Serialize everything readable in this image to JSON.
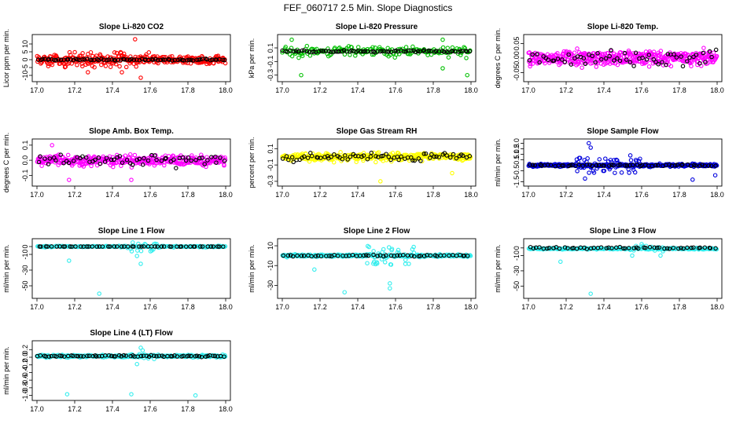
{
  "figure": {
    "title": "FEF_060717  2.5 Min. Slope Diagnostics"
  },
  "chart_data": [
    {
      "type": "scatter",
      "title": "Slope Li-820 CO2",
      "ylabel": "Licor ppm per min.",
      "xlim": [
        17.0,
        18.0
      ],
      "ylim": [
        -12,
        14
      ],
      "x_ticks": [
        17.0,
        17.2,
        17.4,
        17.6,
        17.8,
        18.0
      ],
      "x_tick_labels": [
        "17.0",
        "17.2",
        "17.4",
        "17.6",
        "17.8",
        "18.0"
      ],
      "y_ticks": [
        -10,
        -5,
        0,
        5,
        10
      ],
      "y_tick_labels": [
        "-10",
        "-5",
        "0",
        "5",
        "10"
      ],
      "series": [
        {
          "name": "all",
          "color": "#ff0000",
          "n": 360,
          "center": 0,
          "spread": 2.5,
          "outliers": [
            [
              17.52,
              13.0
            ],
            [
              17.55,
              -11.5
            ],
            [
              17.27,
              -8
            ],
            [
              17.45,
              -8
            ]
          ],
          "spike": {
            "from": 17.05,
            "to": 17.6,
            "amp": 5
          }
        },
        {
          "name": "selected",
          "color": "#000000",
          "n": 80,
          "center": 0,
          "spread": 0.5
        }
      ]
    },
    {
      "type": "scatter",
      "title": "Slope Li-820 Pressure",
      "ylabel": "kPa per min.",
      "xlim": [
        17.0,
        18.0
      ],
      "ylim": [
        -0.35,
        0.25
      ],
      "x_ticks": [
        17.0,
        17.2,
        17.4,
        17.6,
        17.8,
        18.0
      ],
      "x_tick_labels": [
        "17.0",
        "17.2",
        "17.4",
        "17.6",
        "17.8",
        "18.0"
      ],
      "y_ticks": [
        -0.3,
        -0.1,
        0.1
      ],
      "y_tick_labels": [
        "-0.3",
        "-0.1",
        "0.1"
      ],
      "series": [
        {
          "name": "all",
          "color": "#00c000",
          "n": 180,
          "center": 0.05,
          "spread": 0.06,
          "outliers": [
            [
              17.1,
              -0.3
            ],
            [
              17.98,
              -0.3
            ],
            [
              17.85,
              -0.2
            ],
            [
              17.05,
              0.22
            ],
            [
              17.85,
              0.22
            ]
          ],
          "spike": {
            "from": 17.0,
            "to": 18.0,
            "amp": 0.1
          }
        },
        {
          "name": "selected",
          "color": "#000000",
          "n": 80,
          "center": 0.05,
          "spread": 0.015
        }
      ]
    },
    {
      "type": "scatter",
      "title": "Slope Li-820 Temp.",
      "ylabel": "degrees C per min.",
      "xlim": [
        17.0,
        18.0
      ],
      "ylim": [
        -0.07,
        0.07
      ],
      "x_ticks": [
        17.0,
        17.2,
        17.4,
        17.6,
        17.8,
        18.0
      ],
      "x_tick_labels": [
        "17.0",
        "17.2",
        "17.4",
        "17.6",
        "17.8",
        "18.0"
      ],
      "y_ticks": [
        -0.05,
        0.0,
        0.05
      ],
      "y_tick_labels": [
        "-0.05",
        "0.00",
        "0.05"
      ],
      "series": [
        {
          "name": "all",
          "color": "#ff00ff",
          "n": 420,
          "center": 0,
          "spread": 0.025,
          "outliers": [],
          "spike": {
            "from": 17.0,
            "to": 18.0,
            "amp": 0.02
          }
        },
        {
          "name": "selected",
          "color": "#000000",
          "n": 60,
          "center": 0,
          "spread": 0.03
        }
      ]
    },
    {
      "type": "scatter",
      "title": "Slope Amb. Box Temp.",
      "ylabel": "degrees C per min.",
      "xlim": [
        17.0,
        18.0
      ],
      "ylim": [
        -0.15,
        0.12
      ],
      "x_ticks": [
        17.0,
        17.2,
        17.4,
        17.6,
        17.8,
        18.0
      ],
      "x_tick_labels": [
        "17.0",
        "17.2",
        "17.4",
        "17.6",
        "17.8",
        "18.0"
      ],
      "y_ticks": [
        -0.1,
        0.0,
        0.1
      ],
      "y_tick_labels": [
        "-0.1",
        "0.0",
        "0.1"
      ],
      "series": [
        {
          "name": "all",
          "color": "#ff00ff",
          "n": 360,
          "center": 0.0,
          "spread": 0.04,
          "outliers": [
            [
              17.17,
              -0.13
            ],
            [
              17.5,
              -0.13
            ],
            [
              17.08,
              0.1
            ]
          ],
          "spike": {
            "from": 17.0,
            "to": 18.0,
            "amp": 0.02
          }
        },
        {
          "name": "selected",
          "color": "#000000",
          "n": 60,
          "center": 0.0,
          "spread": 0.035
        }
      ]
    },
    {
      "type": "scatter",
      "title": "Slope Gas Stream RH",
      "ylabel": "percent per min.",
      "xlim": [
        17.0,
        18.0
      ],
      "ylim": [
        -0.32,
        0.18
      ],
      "x_ticks": [
        17.0,
        17.2,
        17.4,
        17.6,
        17.8,
        18.0
      ],
      "x_tick_labels": [
        "17.0",
        "17.2",
        "17.4",
        "17.6",
        "17.8",
        "18.0"
      ],
      "y_ticks": [
        -0.3,
        -0.1,
        0.1
      ],
      "y_tick_labels": [
        "-0.3",
        "-0.1",
        "0.1"
      ],
      "series": [
        {
          "name": "all",
          "color": "#ffff00",
          "n": 360,
          "center": 0.0,
          "spread": 0.05,
          "outliers": [
            [
              17.52,
              -0.3
            ],
            [
              17.9,
              -0.2
            ]
          ],
          "spike": {
            "from": 17.0,
            "to": 18.0,
            "amp": 0.03
          }
        },
        {
          "name": "selected",
          "color": "#000000",
          "n": 70,
          "center": 0.0,
          "spread": 0.05
        }
      ]
    },
    {
      "type": "scatter",
      "title": "Slope Sample Flow",
      "ylabel": "ml/min per min.",
      "xlim": [
        17.0,
        18.0
      ],
      "ylim": [
        -1.6,
        2.1
      ],
      "x_ticks": [
        17.0,
        17.2,
        17.4,
        17.6,
        17.8,
        18.0
      ],
      "x_tick_labels": [
        "17.0",
        "17.2",
        "17.4",
        "17.6",
        "17.8",
        "18.0"
      ],
      "y_ticks": [
        -1.5,
        -0.5,
        0.5,
        1.5
      ],
      "y_tick_labels": [
        "-1.5",
        "-0.5",
        "0.5",
        "1.0",
        "1.5",
        "2.0"
      ],
      "y_label_ticks": [
        -1.5,
        -0.5,
        0.5,
        1.0,
        1.5,
        2.0
      ],
      "series": [
        {
          "name": "all",
          "color": "#0000dd",
          "n": 400,
          "center": 0.0,
          "spread": 0.12,
          "outliers": [
            [
              17.32,
              2.0
            ],
            [
              17.33,
              1.6
            ],
            [
              17.3,
              -1.2
            ],
            [
              17.87,
              -1.3
            ],
            [
              17.99,
              -0.9
            ],
            [
              17.54,
              0.9
            ]
          ],
          "spike": {
            "from": 17.25,
            "to": 17.6,
            "amp": 0.7
          }
        },
        {
          "name": "selected",
          "color": "#000000",
          "n": 60,
          "center": 0.0,
          "spread": 0.08
        }
      ]
    },
    {
      "type": "scatter",
      "title": "Slope Line 1 Flow",
      "ylabel": "ml/min per min.",
      "xlim": [
        17.0,
        18.0
      ],
      "ylim": [
        -62,
        6
      ],
      "x_ticks": [
        17.0,
        17.2,
        17.4,
        17.6,
        17.8,
        18.0
      ],
      "x_tick_labels": [
        "17.0",
        "17.2",
        "17.4",
        "17.6",
        "17.8",
        "18.0"
      ],
      "y_ticks": [
        -50,
        -30,
        -10,
        0
      ],
      "y_tick_labels": [
        "-50",
        "-30",
        "-10",
        "0"
      ],
      "series": [
        {
          "name": "all",
          "color": "#33eeee",
          "n": 220,
          "center": 0.0,
          "spread": 0.8,
          "outliers": [
            [
              17.33,
              -60
            ],
            [
              17.17,
              -18
            ],
            [
              17.53,
              -12
            ],
            [
              17.55,
              -22
            ],
            [
              17.62,
              3
            ]
          ],
          "spike": {
            "from": 17.48,
            "to": 17.65,
            "amp": 6
          }
        },
        {
          "name": "selected",
          "color": "#000000",
          "n": 55,
          "center": 0.0,
          "spread": 0.1
        }
      ]
    },
    {
      "type": "scatter",
      "title": "Slope Line 2 Flow",
      "ylabel": "ml/min per min.",
      "xlim": [
        17.0,
        18.0
      ],
      "ylim": [
        -40,
        14
      ],
      "x_ticks": [
        17.0,
        17.2,
        17.4,
        17.6,
        17.8,
        18.0
      ],
      "x_tick_labels": [
        "17.0",
        "17.2",
        "17.4",
        "17.6",
        "17.8",
        "18.0"
      ],
      "y_ticks": [
        -30,
        -10,
        10
      ],
      "y_tick_labels": [
        "-30",
        "-10",
        "10"
      ],
      "series": [
        {
          "name": "all",
          "color": "#33eeee",
          "n": 360,
          "center": 0.0,
          "spread": 1.2,
          "outliers": [
            [
              17.33,
              -37
            ],
            [
              17.57,
              -33
            ],
            [
              17.57,
              -28
            ],
            [
              17.17,
              -14
            ]
          ],
          "spike": {
            "from": 17.45,
            "to": 17.7,
            "amp": 10
          }
        },
        {
          "name": "selected",
          "color": "#000000",
          "n": 55,
          "center": 0.0,
          "spread": 0.8
        }
      ]
    },
    {
      "type": "scatter",
      "title": "Slope Line 3 Flow",
      "ylabel": "ml/min per min.",
      "xlim": [
        17.0,
        18.0
      ],
      "ylim": [
        -62,
        8
      ],
      "x_ticks": [
        17.0,
        17.2,
        17.4,
        17.6,
        17.8,
        18.0
      ],
      "x_tick_labels": [
        "17.0",
        "17.2",
        "17.4",
        "17.6",
        "17.8",
        "18.0"
      ],
      "y_ticks": [
        -50,
        -30,
        -10,
        0
      ],
      "y_tick_labels": [
        "-50",
        "-30",
        "-10",
        "0"
      ],
      "series": [
        {
          "name": "all",
          "color": "#33eeee",
          "n": 260,
          "center": -1.0,
          "spread": 1.0,
          "outliers": [
            [
              17.33,
              -60
            ],
            [
              17.17,
              -18
            ],
            [
              17.55,
              -10
            ],
            [
              17.7,
              -10
            ],
            [
              17.6,
              5
            ]
          ],
          "spike": {
            "from": 17.5,
            "to": 17.75,
            "amp": 4
          }
        },
        {
          "name": "selected",
          "color": "#000000",
          "n": 55,
          "center": 0.0,
          "spread": 1.2
        }
      ]
    },
    {
      "type": "scatter",
      "title": "Slope Line 4 (LT) Flow",
      "ylabel": "ml/min per min.",
      "xlim": [
        17.0,
        18.0
      ],
      "ylim": [
        -1.05,
        0.35
      ],
      "x_ticks": [
        17.0,
        17.2,
        17.4,
        17.6,
        17.8,
        18.0
      ],
      "x_tick_labels": [
        "17.0",
        "17.2",
        "17.4",
        "17.6",
        "17.8",
        "18.0"
      ],
      "y_ticks": [
        -1.0,
        -0.6,
        -0.2,
        0.2
      ],
      "y_tick_labels": [
        "-1.0",
        "-0.8",
        "-0.6",
        "-0.4",
        "-0.2",
        "0.0",
        "0.2"
      ],
      "y_label_ticks": [
        -1.0,
        -0.8,
        -0.6,
        -0.4,
        -0.2,
        0.0,
        0.2
      ],
      "series": [
        {
          "name": "all",
          "color": "#33eeee",
          "n": 360,
          "center": 0.03,
          "spread": 0.03,
          "outliers": [
            [
              17.16,
              -0.97
            ],
            [
              17.5,
              -0.97
            ],
            [
              17.84,
              -1.0
            ],
            [
              17.55,
              0.25
            ],
            [
              17.53,
              -0.18
            ],
            [
              17.56,
              0.18
            ]
          ],
          "spike": {
            "from": 17.45,
            "to": 17.65,
            "amp": 0.08
          }
        },
        {
          "name": "selected",
          "color": "#000000",
          "n": 70,
          "center": 0.03,
          "spread": 0.02
        }
      ]
    }
  ]
}
